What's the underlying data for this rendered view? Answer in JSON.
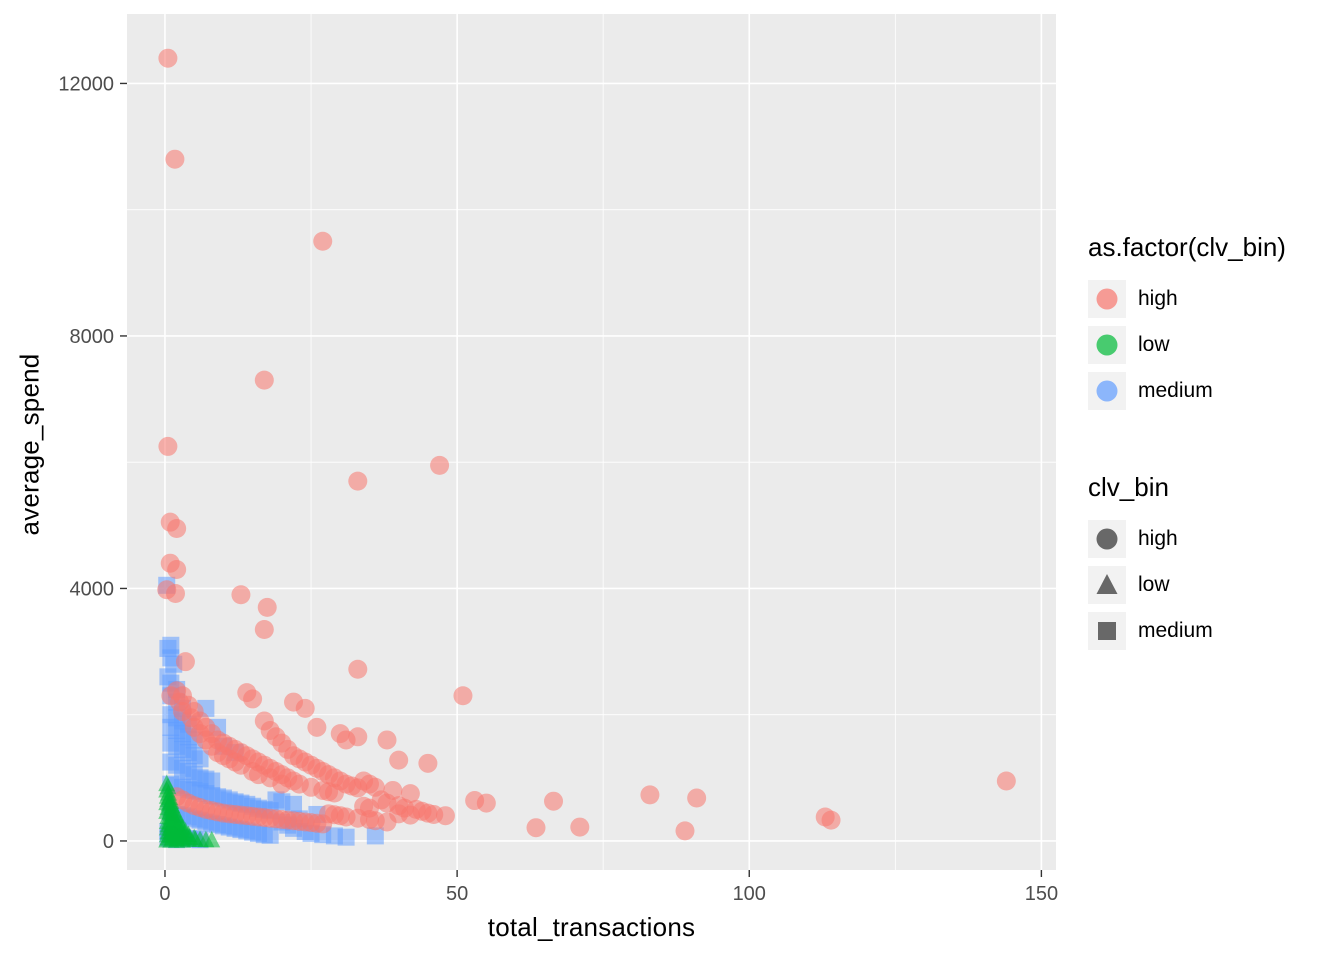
{
  "chart_data": {
    "type": "scatter",
    "title": "",
    "xlabel": "total_transactions",
    "ylabel": "average_spend",
    "x_ticks": [
      0,
      50,
      100,
      150
    ],
    "x_minor_ticks": [
      25,
      75,
      125
    ],
    "y_ticks": [
      0,
      4000,
      8000,
      12000
    ],
    "y_minor_ticks": [
      2000,
      6000,
      10000
    ],
    "xlim": [
      -6.5,
      152.5
    ],
    "ylim": [
      -460,
      13100
    ],
    "panel_background": "#EBEBEB",
    "grid_color": "#FFFFFF",
    "tick_label_color": "#4D4D4D",
    "point_alpha": 0.55,
    "series": [
      {
        "name": "medium",
        "shape": "square",
        "color": "#619CFF",
        "points": [
          [
            0.3,
            4050
          ],
          [
            0.5,
            3050
          ],
          [
            1,
            3100
          ],
          [
            1,
            2900
          ],
          [
            1.5,
            2800
          ],
          [
            0.5,
            2600
          ],
          [
            1,
            2500
          ],
          [
            2,
            2400
          ],
          [
            1,
            2300
          ],
          [
            2,
            2200
          ],
          [
            3,
            2100
          ],
          [
            1,
            2000
          ],
          [
            2,
            1950
          ],
          [
            3,
            1900
          ],
          [
            4,
            1850
          ],
          [
            1,
            1800
          ],
          [
            2,
            1750
          ],
          [
            3,
            1700
          ],
          [
            4,
            1650
          ],
          [
            5,
            1600
          ],
          [
            1,
            1550
          ],
          [
            2,
            1500
          ],
          [
            3,
            1450
          ],
          [
            4,
            1400
          ],
          [
            5,
            1350
          ],
          [
            6,
            1300
          ],
          [
            1,
            1250
          ],
          [
            2,
            1200
          ],
          [
            3,
            1150
          ],
          [
            4,
            1100
          ],
          [
            5,
            1050
          ],
          [
            6,
            1000
          ],
          [
            7,
            980
          ],
          [
            8,
            950
          ],
          [
            1,
            900
          ],
          [
            2,
            880
          ],
          [
            3,
            850
          ],
          [
            4,
            820
          ],
          [
            5,
            800
          ],
          [
            6,
            780
          ],
          [
            7,
            750
          ],
          [
            8,
            720
          ],
          [
            9,
            700
          ],
          [
            10,
            680
          ],
          [
            11,
            650
          ],
          [
            12,
            620
          ],
          [
            13,
            600
          ],
          [
            14,
            580
          ],
          [
            15,
            550
          ],
          [
            16,
            520
          ],
          [
            17,
            500
          ],
          [
            18,
            480
          ],
          [
            1,
            450
          ],
          [
            2,
            420
          ],
          [
            3,
            400
          ],
          [
            4,
            380
          ],
          [
            5,
            350
          ],
          [
            6,
            330
          ],
          [
            7,
            300
          ],
          [
            8,
            280
          ],
          [
            9,
            260
          ],
          [
            10,
            240
          ],
          [
            11,
            220
          ],
          [
            12,
            200
          ],
          [
            13,
            180
          ],
          [
            14,
            160
          ],
          [
            15,
            140
          ],
          [
            16,
            120
          ],
          [
            17,
            100
          ],
          [
            18,
            90
          ],
          [
            20,
            300
          ],
          [
            21,
            250
          ],
          [
            22,
            200
          ],
          [
            24,
            150
          ],
          [
            25,
            120
          ],
          [
            27,
            100
          ],
          [
            29,
            80
          ],
          [
            31,
            60
          ],
          [
            23,
            350
          ],
          [
            26,
            420
          ],
          [
            36,
            80
          ],
          [
            0.5,
            150
          ],
          [
            1,
            100
          ],
          [
            2,
            80
          ],
          [
            3,
            60
          ],
          [
            0.5,
            50
          ],
          [
            1,
            30
          ],
          [
            2,
            20
          ],
          [
            4,
            40
          ],
          [
            5,
            30
          ],
          [
            6,
            20
          ],
          [
            19,
            650
          ],
          [
            20,
            620
          ],
          [
            22,
            580
          ],
          [
            10,
            1500
          ],
          [
            12,
            1400
          ],
          [
            9,
            1800
          ],
          [
            7,
            2100
          ]
        ]
      },
      {
        "name": "high",
        "shape": "circle",
        "color": "#F8766D",
        "points": [
          [
            0.5,
            12400
          ],
          [
            1.7,
            10800
          ],
          [
            27,
            9500
          ],
          [
            17,
            7300
          ],
          [
            0.5,
            6250
          ],
          [
            47,
            5950
          ],
          [
            33,
            5700
          ],
          [
            0.9,
            5050
          ],
          [
            2,
            4950
          ],
          [
            0.9,
            4400
          ],
          [
            2,
            4300
          ],
          [
            0.3,
            3980
          ],
          [
            1.8,
            3920
          ],
          [
            13,
            3900
          ],
          [
            17.5,
            3700
          ],
          [
            17,
            3350
          ],
          [
            3.5,
            2840
          ],
          [
            33,
            2720
          ],
          [
            51,
            2300
          ],
          [
            144,
            950
          ],
          [
            83,
            730
          ],
          [
            91,
            680
          ],
          [
            113,
            380
          ],
          [
            114,
            330
          ],
          [
            63.5,
            210
          ],
          [
            71,
            220
          ],
          [
            89,
            160
          ],
          [
            53,
            640
          ],
          [
            55,
            600
          ],
          [
            66.5,
            630
          ],
          [
            1,
            2300
          ],
          [
            2,
            2380
          ],
          [
            2.5,
            2200
          ],
          [
            3,
            2300
          ],
          [
            3,
            2050
          ],
          [
            4,
            2150
          ],
          [
            4.5,
            1950
          ],
          [
            5,
            2050
          ],
          [
            5,
            1800
          ],
          [
            6,
            1900
          ],
          [
            6,
            1700
          ],
          [
            7,
            1800
          ],
          [
            7,
            1600
          ],
          [
            8,
            1700
          ],
          [
            8,
            1500
          ],
          [
            9,
            1600
          ],
          [
            9,
            1400
          ],
          [
            10,
            1550
          ],
          [
            10,
            1350
          ],
          [
            11,
            1500
          ],
          [
            11,
            1300
          ],
          [
            12,
            1450
          ],
          [
            12,
            1250
          ],
          [
            13,
            1400
          ],
          [
            13,
            1200
          ],
          [
            14,
            2350
          ],
          [
            14,
            1350
          ],
          [
            15,
            2250
          ],
          [
            15,
            1300
          ],
          [
            15,
            1100
          ],
          [
            16,
            1250
          ],
          [
            16,
            1050
          ],
          [
            17,
            1900
          ],
          [
            17,
            1200
          ],
          [
            18,
            1750
          ],
          [
            18,
            1150
          ],
          [
            18,
            1000
          ],
          [
            19,
            1650
          ],
          [
            19,
            1100
          ],
          [
            20,
            1550
          ],
          [
            20,
            1050
          ],
          [
            20,
            900
          ],
          [
            21,
            1450
          ],
          [
            21,
            1000
          ],
          [
            22,
            2200
          ],
          [
            22,
            1350
          ],
          [
            22,
            950
          ],
          [
            23,
            1300
          ],
          [
            23,
            900
          ],
          [
            24,
            2100
          ],
          [
            24,
            1250
          ],
          [
            25,
            1200
          ],
          [
            25,
            850
          ],
          [
            26,
            1800
          ],
          [
            26,
            1150
          ],
          [
            27,
            1100
          ],
          [
            27,
            800
          ],
          [
            28,
            1050
          ],
          [
            28,
            780
          ],
          [
            29,
            1000
          ],
          [
            29,
            760
          ],
          [
            30,
            1700
          ],
          [
            30,
            950
          ],
          [
            31,
            1600
          ],
          [
            31,
            900
          ],
          [
            32,
            870
          ],
          [
            33,
            1650
          ],
          [
            33,
            840
          ],
          [
            34,
            950
          ],
          [
            34,
            550
          ],
          [
            35,
            900
          ],
          [
            35,
            520
          ],
          [
            36,
            850
          ],
          [
            37,
            650
          ],
          [
            38,
            1600
          ],
          [
            38,
            600
          ],
          [
            39,
            800
          ],
          [
            40,
            1280
          ],
          [
            40,
            560
          ],
          [
            41,
            520
          ],
          [
            42,
            750
          ],
          [
            43,
            500
          ],
          [
            44,
            470
          ],
          [
            45,
            1230
          ],
          [
            45,
            440
          ],
          [
            46,
            420
          ],
          [
            48,
            400
          ],
          [
            2,
            700
          ],
          [
            3,
            650
          ],
          [
            4,
            600
          ],
          [
            5,
            560
          ],
          [
            6,
            530
          ],
          [
            7,
            500
          ],
          [
            8,
            480
          ],
          [
            9,
            460
          ],
          [
            10,
            440
          ],
          [
            11,
            430
          ],
          [
            12,
            420
          ],
          [
            13,
            410
          ],
          [
            14,
            400
          ],
          [
            15,
            390
          ],
          [
            16,
            380
          ],
          [
            17,
            370
          ],
          [
            18,
            360
          ],
          [
            19,
            350
          ],
          [
            20,
            340
          ],
          [
            21,
            330
          ],
          [
            22,
            320
          ],
          [
            23,
            310
          ],
          [
            24,
            300
          ],
          [
            25,
            290
          ],
          [
            26,
            280
          ],
          [
            27,
            270
          ],
          [
            28,
            430
          ],
          [
            29,
            415
          ],
          [
            30,
            400
          ],
          [
            31,
            380
          ],
          [
            33,
            360
          ],
          [
            35,
            340
          ],
          [
            36,
            320
          ],
          [
            38,
            300
          ],
          [
            40,
            430
          ],
          [
            42,
            410
          ]
        ]
      },
      {
        "name": "low",
        "shape": "triangle",
        "color": "#00BA38",
        "points": [
          [
            0.3,
            900
          ],
          [
            0.5,
            850
          ],
          [
            0.3,
            800
          ],
          [
            0.6,
            750
          ],
          [
            0.4,
            700
          ],
          [
            0.8,
            680
          ],
          [
            0.5,
            650
          ],
          [
            1,
            620
          ],
          [
            0.3,
            600
          ],
          [
            0.7,
            580
          ],
          [
            1.2,
            550
          ],
          [
            0.5,
            520
          ],
          [
            1,
            500
          ],
          [
            1.5,
            480
          ],
          [
            0.3,
            460
          ],
          [
            0.8,
            440
          ],
          [
            1.3,
            420
          ],
          [
            2,
            400
          ],
          [
            0.5,
            380
          ],
          [
            1,
            360
          ],
          [
            1.6,
            340
          ],
          [
            2.2,
            320
          ],
          [
            0.4,
            300
          ],
          [
            0.9,
            290
          ],
          [
            1.4,
            280
          ],
          [
            2,
            270
          ],
          [
            2.6,
            260
          ],
          [
            0.5,
            250
          ],
          [
            1.1,
            240
          ],
          [
            1.7,
            230
          ],
          [
            2.3,
            220
          ],
          [
            3,
            210
          ],
          [
            0.4,
            200
          ],
          [
            1,
            190
          ],
          [
            1.6,
            180
          ],
          [
            2.2,
            170
          ],
          [
            2.8,
            160
          ],
          [
            3.5,
            150
          ],
          [
            0.5,
            140
          ],
          [
            1.2,
            130
          ],
          [
            1.9,
            120
          ],
          [
            2.6,
            110
          ],
          [
            3.3,
            100
          ],
          [
            4,
            95
          ],
          [
            0.4,
            90
          ],
          [
            1,
            80
          ],
          [
            1.8,
            70
          ],
          [
            2.5,
            60
          ],
          [
            3.2,
            55
          ],
          [
            4.2,
            50
          ],
          [
            5,
            45
          ],
          [
            0.5,
            40
          ],
          [
            1.3,
            35
          ],
          [
            2.1,
            30
          ],
          [
            3,
            25
          ],
          [
            4,
            20
          ],
          [
            5.2,
            18
          ],
          [
            6,
            15
          ],
          [
            7,
            12
          ],
          [
            8,
            10
          ],
          [
            0.3,
            8
          ],
          [
            1,
            5
          ],
          [
            2,
            4
          ],
          [
            3,
            3
          ]
        ]
      }
    ],
    "legends": [
      {
        "title": "as.factor(clv_bin)",
        "entries": [
          {
            "label": "high",
            "shape": "circle",
            "color": "#F8766D"
          },
          {
            "label": "low",
            "shape": "circle",
            "color": "#00BA38"
          },
          {
            "label": "medium",
            "shape": "circle",
            "color": "#619CFF"
          }
        ]
      },
      {
        "title": "clv_bin",
        "entries": [
          {
            "label": "high",
            "shape": "circle",
            "color": "#595959"
          },
          {
            "label": "low",
            "shape": "triangle",
            "color": "#595959"
          },
          {
            "label": "medium",
            "shape": "square",
            "color": "#595959"
          }
        ]
      }
    ]
  }
}
